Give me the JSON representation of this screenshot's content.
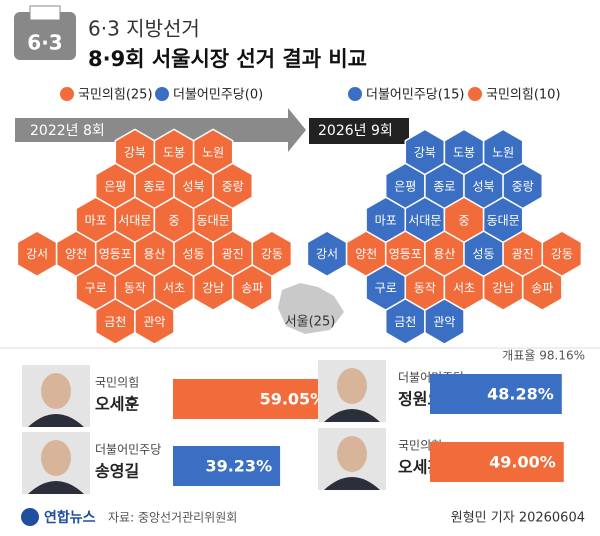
{
  "header": {
    "badge": "6·3",
    "title": "6·3 지방선거",
    "subtitle": "8·9회 서울시장 선거 결과 비교"
  },
  "districts": [
    "강북",
    "도봉",
    "노원",
    "은평",
    "종로",
    "성북",
    "중랑",
    "마포",
    "서대문",
    "중",
    "동대문",
    "강서",
    "양천",
    "영등포",
    "용산",
    "성동",
    "광진",
    "강동",
    "구로",
    "동작",
    "서초",
    "강남",
    "송파",
    "금천",
    "관악"
  ],
  "elections": [
    {
      "label": "2022년 8회",
      "legend": [
        {
          "label": "국민의힘(25)",
          "color": "#f26b3a"
        },
        {
          "label": "더불어민주당(0)",
          "color": "#3a6fc4"
        }
      ],
      "district_colors": [
        "#f26b3a",
        "#f26b3a",
        "#f26b3a",
        "#f26b3a",
        "#f26b3a",
        "#f26b3a",
        "#f26b3a",
        "#f26b3a",
        "#f26b3a",
        "#f26b3a",
        "#f26b3a",
        "#f26b3a",
        "#f26b3a",
        "#f26b3a",
        "#f26b3a",
        "#f26b3a",
        "#f26b3a",
        "#f26b3a",
        "#f26b3a",
        "#f26b3a",
        "#f26b3a",
        "#f26b3a",
        "#f26b3a",
        "#f26b3a",
        "#f26b3a"
      ],
      "candidates": [
        {
          "party": "국민의힘",
          "name": "오세훈",
          "value": 59.05,
          "value_label": "59.05%",
          "color": "#f26b3a"
        },
        {
          "party": "더불어민주당",
          "name": "송영길",
          "value": 39.23,
          "value_label": "39.23%",
          "color": "#3a6fc4"
        }
      ]
    },
    {
      "label": "2026년 9회",
      "legend": [
        {
          "label": "더불어민주당(15)",
          "color": "#3a6fc4"
        },
        {
          "label": "국민의힘(10)",
          "color": "#f26b3a"
        }
      ],
      "district_colors": [
        "#3a6fc4",
        "#3a6fc4",
        "#3a6fc4",
        "#3a6fc4",
        "#3a6fc4",
        "#3a6fc4",
        "#3a6fc4",
        "#3a6fc4",
        "#3a6fc4",
        "#f26b3a",
        "#3a6fc4",
        "#3a6fc4",
        "#f26b3a",
        "#f26b3a",
        "#f26b3a",
        "#3a6fc4",
        "#f26b3a",
        "#f26b3a",
        "#3a6fc4",
        "#f26b3a",
        "#f26b3a",
        "#f26b3a",
        "#f26b3a",
        "#3a6fc4",
        "#3a6fc4"
      ],
      "candidates": [
        {
          "party": "더불어민주당",
          "name": "정원오",
          "value": 48.28,
          "value_label": "48.28%",
          "color": "#3a6fc4"
        },
        {
          "party": "국민의힘",
          "name": "오세훈",
          "value": 49.0,
          "value_label": "49.00%",
          "color": "#f26b3a"
        }
      ]
    }
  ],
  "seoul_label": "서울(25)",
  "count_rate": "개표율 98.16%",
  "footer": {
    "logo": "연합뉴스",
    "source": "자료: 중앙선거관리위원회",
    "credit": "원형민 기자 20260604"
  }
}
